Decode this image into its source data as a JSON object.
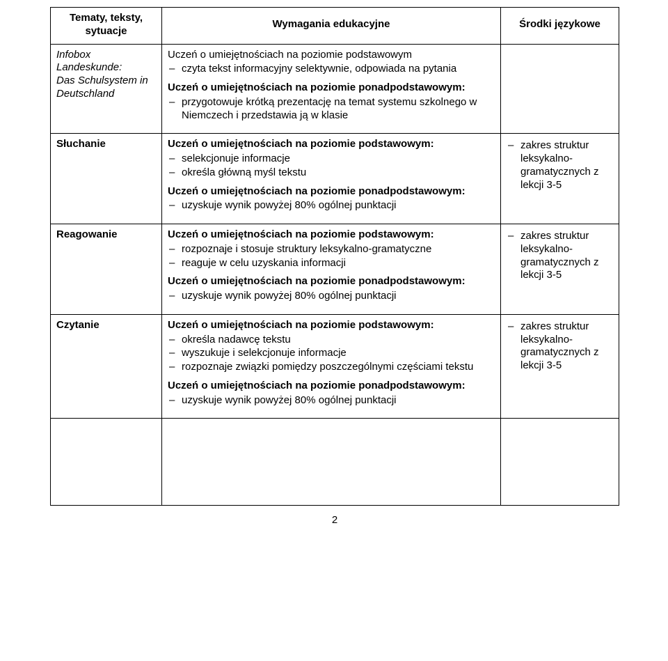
{
  "header": {
    "col1": "Tematy, teksty, sytuacje",
    "col2": "Wymagania edukacyjne",
    "col3": "Środki językowe"
  },
  "rows": [
    {
      "titleLines": [
        "Infobox Landeskunde:",
        "Das Schulsystem in",
        "Deutschland"
      ],
      "titleItalic": true,
      "col2": {
        "blocks": [
          {
            "lead": "Uczeń o umiejętnościach na poziomie podstawowym",
            "bold": false,
            "items": [
              "czyta tekst informacyjny selektywnie, odpowiada na pytania"
            ]
          },
          {
            "lead": "Uczeń o umiejętnościach na poziomie ponadpodstawowym:",
            "bold": true,
            "items": [
              "przygotowuje krótką prezentację na temat systemu szkolnego w Niemczech i przedstawia ją w klasie"
            ]
          }
        ]
      },
      "col3": {
        "items": []
      }
    },
    {
      "titleLines": [
        "Słuchanie"
      ],
      "titleItalic": false,
      "col2": {
        "blocks": [
          {
            "lead": "Uczeń o umiejętnościach na poziomie podstawowym:",
            "bold": true,
            "items": [
              "selekcjonuje informacje",
              "określa główną myśl tekstu"
            ]
          },
          {
            "lead": "Uczeń o umiejętnościach na poziomie ponadpodstawowym:",
            "bold": true,
            "items": [
              "uzyskuje wynik powyżej 80% ogólnej punktacji"
            ]
          }
        ]
      },
      "col3": {
        "items": [
          "zakres struktur leksykalno-gramatycznych z lekcji 3-5"
        ]
      }
    },
    {
      "titleLines": [
        "Reagowanie"
      ],
      "titleItalic": false,
      "col2": {
        "blocks": [
          {
            "lead": "Uczeń o umiejętnościach na poziomie podstawowym:",
            "bold": true,
            "items": [
              "rozpoznaje i stosuje struktury leksykalno-gramatyczne",
              "reaguje w celu uzyskania informacji"
            ]
          },
          {
            "lead": "Uczeń o umiejętnościach na poziomie ponadpodstawowym:",
            "bold": true,
            "items": [
              "uzyskuje wynik powyżej 80% ogólnej punktacji"
            ]
          }
        ]
      },
      "col3": {
        "items": [
          "zakres struktur leksykalno-gramatycznych z lekcji 3-5"
        ]
      }
    },
    {
      "titleLines": [
        "Czytanie"
      ],
      "titleItalic": false,
      "col2": {
        "blocks": [
          {
            "lead": "Uczeń o umiejętnościach na poziomie podstawowym:",
            "bold": true,
            "items": [
              "określa nadawcę tekstu",
              "wyszukuje i selekcjonuje informacje",
              "rozpoznaje związki pomiędzy poszczególnymi częściami tekstu"
            ]
          },
          {
            "lead": "Uczeń o umiejętnościach na poziomie ponadpodstawowym:",
            "bold": true,
            "items": [
              "uzyskuje wynik powyżej 80% ogólnej punktacji"
            ]
          }
        ]
      },
      "col3": {
        "items": [
          "zakres struktur leksykalno-gramatycznych z lekcji 3-5"
        ]
      }
    }
  ],
  "pageNumber": "2"
}
